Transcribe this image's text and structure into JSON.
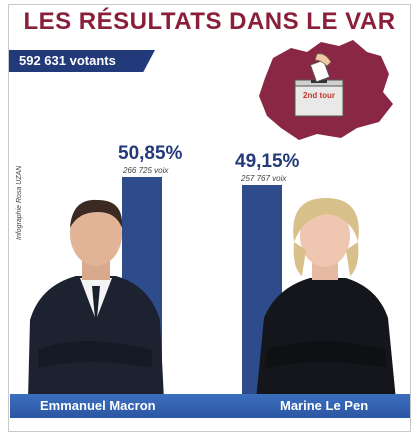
{
  "title": "LES RÉSULTATS DANS LE VAR",
  "voters_label": "592 631  votants",
  "ballot_box_label": "2nd tour",
  "credit": "Infographie Rosa UZAN",
  "chart_data": {
    "type": "bar",
    "categories": [
      "Emmanuel Macron",
      "Marine Le Pen"
    ],
    "values": [
      50.85,
      49.15
    ],
    "value_labels": [
      "50,85%",
      "49,15%"
    ],
    "votes_labels": [
      "266 725 voix",
      "257 767 voix"
    ],
    "title": "LES RÉSULTATS DANS LE VAR",
    "ylim": [
      0,
      100
    ]
  },
  "colors": {
    "title": "#8a1f3a",
    "bar": "#2e4b8c",
    "band": "#2b56a3",
    "map": "#8a2744"
  }
}
